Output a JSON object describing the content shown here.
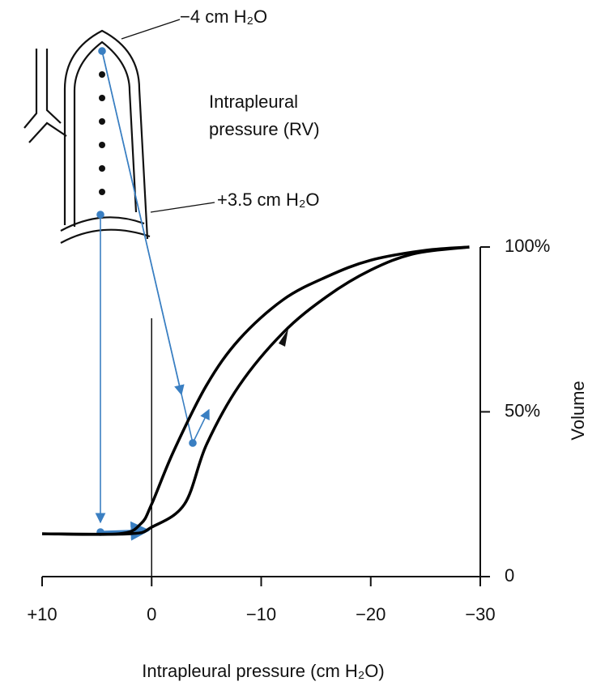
{
  "chart_data": {
    "type": "line",
    "annotations": [
      "−4 cm H₂O",
      "Intrapleural",
      "pressure (RV)",
      "+3.5 cm H₂O"
    ],
    "xlabel": "Intrapleural pressure (cm H₂O)",
    "ylabel": "Volume",
    "xlim": [
      10,
      -30
    ],
    "xticks": [
      {
        "value": 10,
        "label": "+10"
      },
      0,
      {
        "value": -10,
        "label": "−10"
      },
      {
        "value": -20,
        "label": "−20"
      },
      {
        "value": -30,
        "label": "−30"
      }
    ],
    "ylim": [
      0,
      100
    ],
    "yticks": [
      0,
      {
        "value": 50,
        "label": "50%"
      },
      {
        "value": 100,
        "label": "100%"
      }
    ],
    "color": "#000000",
    "series": [
      {
        "x": [
          10,
          2,
          0,
          -3,
          -5,
          -8,
          -12,
          -16,
          -20,
          -24,
          -29
        ],
        "values": [
          13,
          13,
          15,
          22,
          40,
          58,
          74,
          85,
          93,
          98,
          100
        ]
      },
      {
        "x": [
          10,
          3,
          1,
          0,
          -2,
          -5,
          -8,
          -12,
          -16,
          -20,
          -25,
          -29
        ],
        "values": [
          13,
          13,
          16,
          22,
          38,
          58,
          72,
          84,
          91,
          96,
          99,
          100
        ]
      }
    ]
  }
}
